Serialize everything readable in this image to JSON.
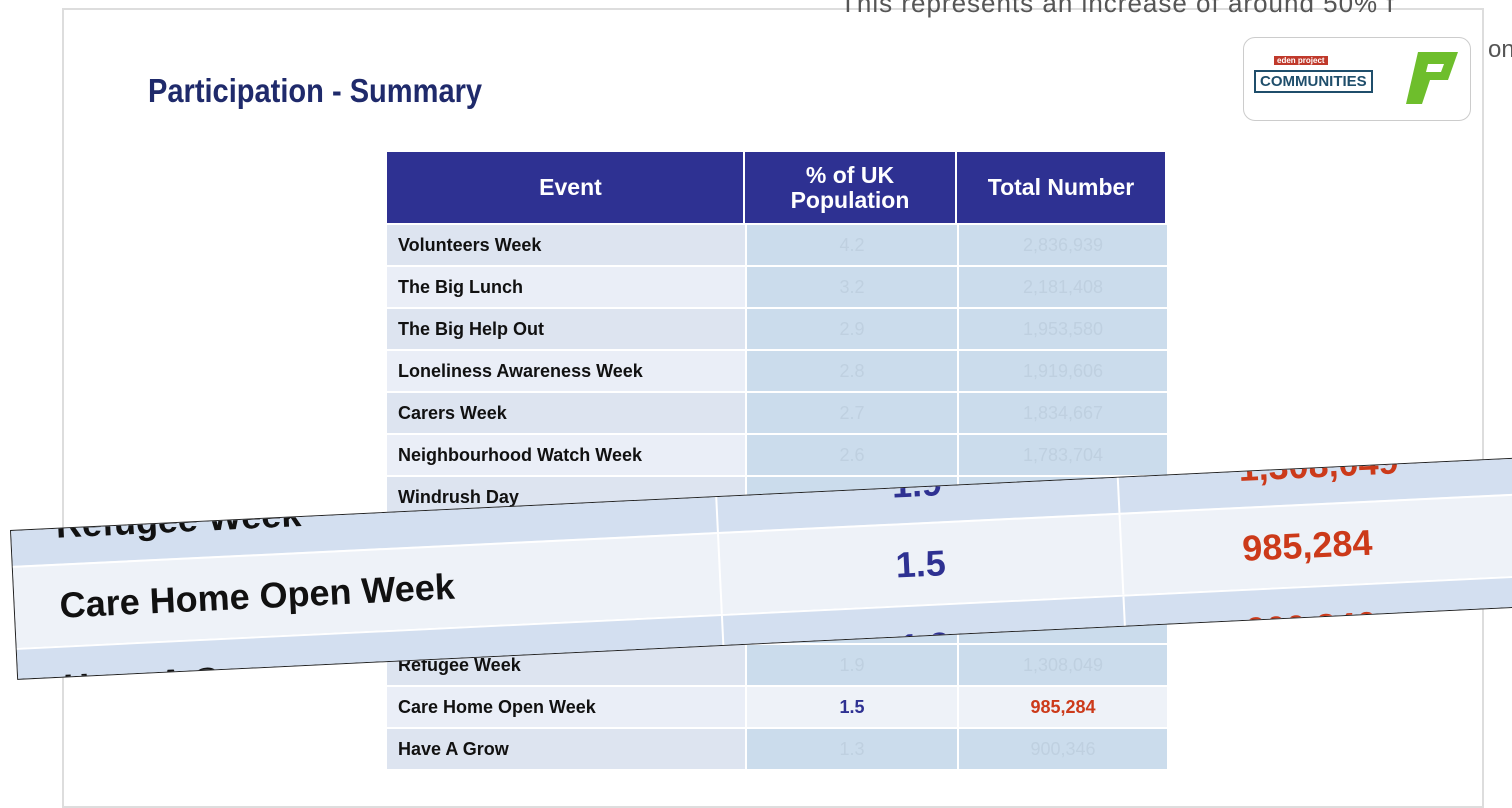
{
  "caption": "This represents an increase of around 50% f",
  "caption_tail": "on",
  "title": "Participation - Summary",
  "logo": {
    "top": "eden project",
    "main": "COMMUNITIES"
  },
  "table": {
    "header": [
      "Event",
      "% of UK Population",
      "Total Number"
    ],
    "rows": [
      [
        "Volunteers Week",
        "4.2",
        "2,836,939"
      ],
      [
        "The Big Lunch",
        "3.2",
        "2,181,408"
      ],
      [
        "The Big Help Out",
        "2.9",
        "1,953,580"
      ],
      [
        "Loneliness Awareness Week",
        "2.8",
        "1,919,606"
      ],
      [
        "Carers Week",
        "2.7",
        "1,834,667"
      ],
      [
        "Neighbourhood Watch Week",
        "2.6",
        "1,783,704"
      ],
      [
        "Windrush Day",
        "",
        ""
      ],
      [
        "",
        "",
        ""
      ],
      [
        "",
        "",
        ""
      ],
      [
        "",
        "",
        ""
      ],
      [
        "Refugee Week",
        "1.9",
        "1,308,049"
      ],
      [
        "Care Home Open Week",
        "1.5",
        "985,284"
      ],
      [
        "Have A Grow",
        "1.3",
        "900,346"
      ]
    ]
  }
}
